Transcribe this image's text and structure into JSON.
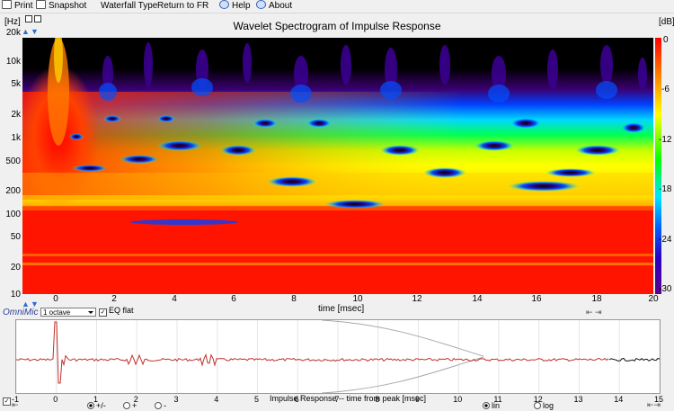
{
  "toolbar": {
    "print": "Print",
    "snapshot": "Snapshot",
    "waterfall_type": "Waterfall Type",
    "return_fr": "Return to FR",
    "help": "Help",
    "about": "About"
  },
  "spectrogram": {
    "title": "Wavelet Spectrogram of Impulse Response",
    "y_unit": "[Hz]",
    "y_ticks": [
      "20k",
      "10k",
      "5k",
      "2k",
      "1k",
      "500",
      "200",
      "100",
      "50",
      "20",
      "10"
    ],
    "x_ticks": [
      "0",
      "2",
      "4",
      "6",
      "8",
      "10",
      "12",
      "14",
      "16",
      "18",
      "20"
    ],
    "x_label": "time [msec]",
    "cb_unit": "[dB]",
    "cb_ticks": [
      "0",
      "-6",
      "-12",
      "-18",
      "-24",
      "-30"
    ],
    "brand": "OmniMic",
    "octave": "1 octave",
    "eq_flat": "EQ flat"
  },
  "impulse": {
    "x_ticks": [
      "-1",
      "0",
      "1",
      "2",
      "3",
      "4",
      "5",
      "6",
      "7",
      "8",
      "9",
      "10",
      "11",
      "12",
      "13",
      "14",
      "15"
    ],
    "x_label": "Impulse Response -- time from peak [msec]",
    "radio_plusminus": "+/-",
    "radio_plus": "+",
    "radio_minus": "-",
    "radio_lin": "lin",
    "radio_log": "log"
  },
  "colors": {
    "trace": "#c0302a",
    "envelope": "#a8a8a8",
    "tail": "#111111"
  }
}
